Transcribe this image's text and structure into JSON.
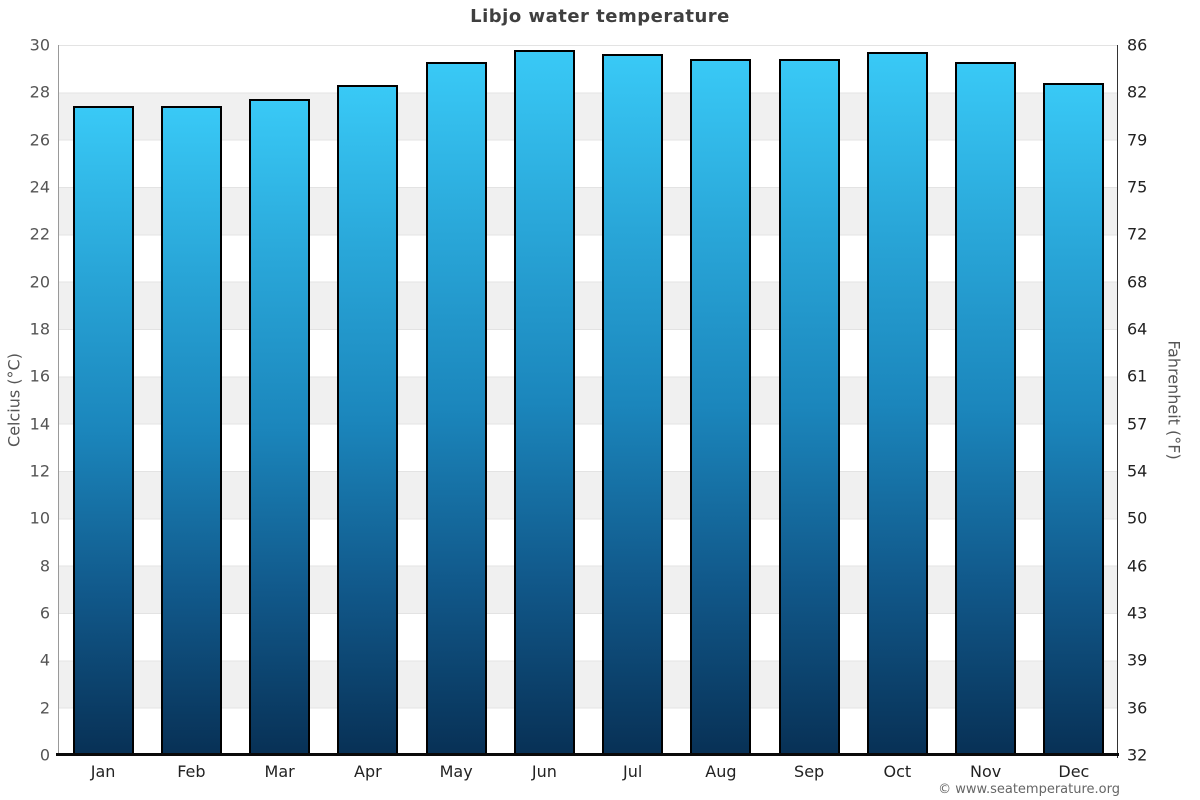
{
  "page": {
    "title": "Libjo water temperature",
    "watermark": "© www.seatemperature.org"
  },
  "chart_data": {
    "type": "bar",
    "title": "Libjo water temperature",
    "categories": [
      "Jan",
      "Feb",
      "Mar",
      "Apr",
      "May",
      "Jun",
      "Jul",
      "Aug",
      "Sep",
      "Oct",
      "Nov",
      "Dec"
    ],
    "values": [
      27.4,
      27.4,
      27.7,
      28.3,
      29.3,
      29.8,
      29.6,
      29.4,
      29.4,
      29.7,
      29.3,
      28.4
    ],
    "ylabel_left": "Celcius (°C)",
    "ylabel_right": "Fahrenheit (°F)",
    "ylim_left": [
      0,
      30
    ],
    "ylim_right": [
      32,
      86
    ],
    "yticks_left": [
      30,
      28,
      26,
      24,
      22,
      20,
      18,
      16,
      14,
      12,
      10,
      8,
      6,
      4,
      2,
      0
    ],
    "yticks_right": [
      86,
      82,
      79,
      75,
      72,
      68,
      64,
      61,
      57,
      54,
      50,
      46,
      43,
      39,
      36,
      32
    ],
    "grid": "alternating horizontal bands every 2°C",
    "legend": "none",
    "colors": {
      "bar_gradient_top": "#39c9f6",
      "bar_gradient_upper_mid": "#29a6d8",
      "bar_gradient_mid": "#1b86bc",
      "bar_gradient_lower_mid": "#11598b",
      "bar_gradient_bottom": "#083156",
      "bar_border": "#000000",
      "band_gray": "#f0f0f0",
      "band_white": "#ffffff",
      "title_text": "#3f3f3f",
      "tick_text": "#555555",
      "baseline": "#0a0a0a"
    }
  }
}
